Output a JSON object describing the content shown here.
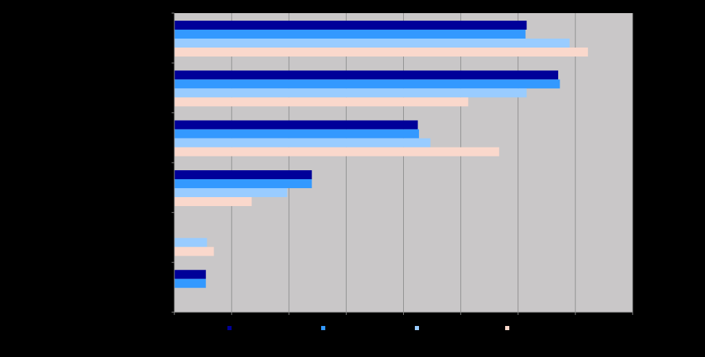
{
  "colors": {
    "background": "#000000",
    "plot_area": "#c9c7c8",
    "gridline": "#8c8c8c",
    "axis": "#8c8c8c"
  },
  "chart_data": {
    "type": "bar",
    "orientation": "horizontal",
    "title": "",
    "xlabel": "",
    "ylabel": "",
    "xlim": [
      0,
      8
    ],
    "grid": true,
    "legend_position": "bottom",
    "categories": [
      "",
      "",
      "",
      "",
      "",
      ""
    ],
    "series": [
      {
        "color": "#000099",
        "values": [
          6.15,
          6.7,
          4.25,
          2.4,
          null,
          0.55
        ]
      },
      {
        "color": "#3399ff",
        "values": [
          6.13,
          6.73,
          4.27,
          2.4,
          null,
          0.55
        ]
      },
      {
        "color": "#99ccff",
        "values": [
          6.9,
          6.15,
          4.47,
          1.97,
          0.57,
          null
        ]
      },
      {
        "color": "#fad8cc",
        "values": [
          7.22,
          5.13,
          5.67,
          1.35,
          0.69,
          null
        ]
      }
    ]
  }
}
